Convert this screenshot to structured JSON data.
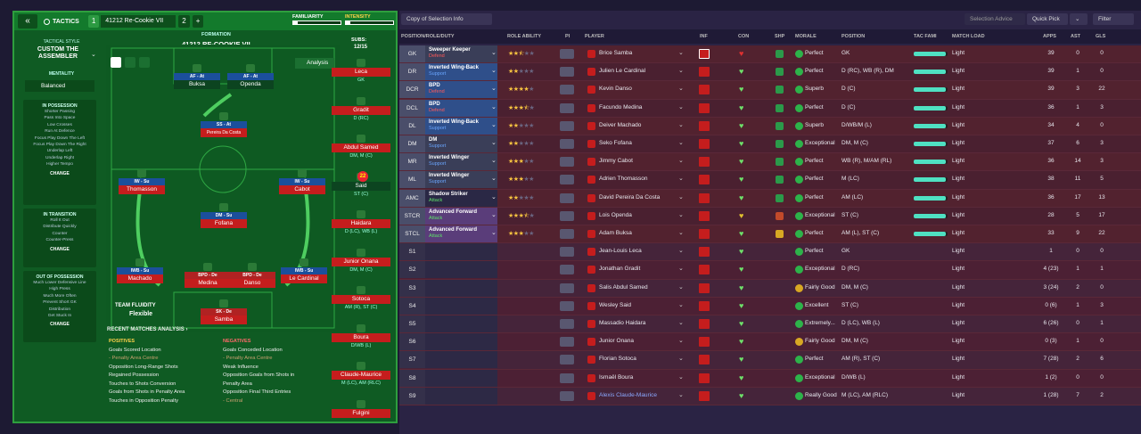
{
  "header": {
    "back": "«",
    "tactics": "TACTICS",
    "slot1": "1",
    "slot1_name": "41212 Re-Cookie VII",
    "slot2": "2",
    "add": "+",
    "familiarity": "FAMILIARITY",
    "intensity": "INTENSITY"
  },
  "side": {
    "style_label": "TACTICAL STYLE",
    "style_name": "CUSTOM THE ASSEMBLER",
    "mentality_label": "MENTALITY",
    "mentality": "Balanced",
    "in_possession": "IN POSSESSION",
    "in_possession_items": [
      "Shorter Passing",
      "Pass Into Space",
      "Low Crosses",
      "Run At Defence",
      "Focus Play Down The Left",
      "Focus Play Down The Right",
      "Underlap Left",
      "Underlap Right",
      "Higher Tempo"
    ],
    "in_transition": "IN TRANSITION",
    "in_transition_items": [
      "Roll It Out",
      "Distribute Quickly",
      "Counter",
      "Counter-Press"
    ],
    "out_of_possession": "OUT OF POSSESSION",
    "out_items": [
      "Much Lower Defensive Line",
      "High Press",
      "Much More Often",
      "Prevent Short GK",
      "Distribution",
      "Get Stuck In"
    ],
    "change": "CHANGE"
  },
  "formation": {
    "label": "FORMATION",
    "name": "41212 RE-COOKIE VII",
    "subs_label": "SUBS:",
    "subs": "12/15",
    "analysis": "Analysis",
    "team_fluidity": "TEAM FLUIDITY",
    "fluidity": "Flexible"
  },
  "pitch_players": [
    {
      "role": "AF - At",
      "name": "Buksa"
    },
    {
      "role": "AF - At",
      "name": "Openda"
    },
    {
      "role": "SS - At",
      "name": "Pereira Da Costa"
    },
    {
      "role": "IW - Su",
      "name": "Thomasson"
    },
    {
      "role": "IW - Su",
      "name": "Cabot"
    },
    {
      "role": "DM - Su",
      "name": "Fofana"
    },
    {
      "role": "IWB - Su",
      "name": "Machado"
    },
    {
      "role": "BPD - De",
      "name": "Medina"
    },
    {
      "role": "BPD - De",
      "name": "Danso"
    },
    {
      "role": "IWB - Su",
      "name": "Le Cardinal"
    },
    {
      "role": "SK - De",
      "name": "Samba"
    }
  ],
  "subs_list": [
    {
      "name": "Leca",
      "pos": "GK"
    },
    {
      "name": "Gradit",
      "pos": "D (RC)"
    },
    {
      "name": "Abdul Samed",
      "pos": "DM, M (C)"
    },
    {
      "name": "Said",
      "pos": "ST (C)",
      "num": "22"
    },
    {
      "name": "Haidara",
      "pos": "D (LC), WB (L)"
    },
    {
      "name": "Junior Onana",
      "pos": "DM, M (C)"
    },
    {
      "name": "Sotoca",
      "pos": "AM (R), ST (C)"
    },
    {
      "name": "Boura",
      "pos": "D/WB (L)"
    },
    {
      "name": "Claude-Maurice",
      "pos": "M (LC), AM (RLC)"
    },
    {
      "name": "Fulgini",
      "pos": ""
    }
  ],
  "analysis": {
    "title": "RECENT MATCHES ANALYSIS ›",
    "positives_label": "POSITIVES",
    "positives": [
      "Goals Scored Location",
      "- Penalty Area Centre",
      "Opposition Long-Range Shots",
      "Regained Possession",
      "Touches to Shots Conversion",
      "Goals from Shots in Penalty Area",
      "Touches in Opposition Penalty"
    ],
    "negatives_label": "NEGATIVES",
    "negatives": [
      "Goals Conceded Location",
      "- Penalty Area Centre",
      "Weak Influence",
      "Opposition Goals from Shots in",
      "Penalty Area",
      "Opposition Final Third Entries",
      "- Central"
    ]
  },
  "right_top": {
    "copy": "Copy of Selection Info",
    "selection_advice": "Selection Advice",
    "quick_pick": "Quick Pick",
    "filter": "Filter"
  },
  "columns": [
    "POSITION/ROLE/DUTY",
    "ROLE ABILITY",
    "PI",
    "PLAYER",
    "INF",
    "CON",
    "SHP",
    "MORALE",
    "POSITION",
    "TAC FAMI",
    "MATCH LOAD",
    "APPS",
    "AST",
    "GLS"
  ],
  "rows": [
    {
      "pos": "GK",
      "role": "Sweeper Keeper",
      "duty": "Defend",
      "stars": 2.5,
      "player": "Brice Samba",
      "morale": "Perfect",
      "position": "GK",
      "fami": 0.95,
      "load": "Light",
      "apps": "39",
      "ast": "0",
      "gls": "0",
      "shp": "#2b9a4a",
      "mc": "#2db34a"
    },
    {
      "pos": "DR",
      "role": "Inverted Wing-Back",
      "duty": "Support",
      "stars": 2,
      "player": "Julien Le Cardinal",
      "morale": "Perfect",
      "position": "D (RC), WB (R), DM",
      "fami": 0.95,
      "load": "Light",
      "apps": "39",
      "ast": "1",
      "gls": "0",
      "shp": "#2b9a4a",
      "mc": "#2db34a"
    },
    {
      "pos": "DCR",
      "role": "BPD",
      "duty": "Defend",
      "stars": 4,
      "player": "Kevin Danso",
      "morale": "Superb",
      "position": "D (C)",
      "fami": 0.95,
      "load": "Light",
      "apps": "39",
      "ast": "3",
      "gls": "22",
      "shp": "#2b9a4a",
      "mc": "#2db34a"
    },
    {
      "pos": "DCL",
      "role": "BPD",
      "duty": "Defend",
      "stars": 3.5,
      "player": "Facundo Medina",
      "morale": "Perfect",
      "position": "D (C)",
      "fami": 0.95,
      "load": "Light",
      "apps": "36",
      "ast": "1",
      "gls": "3",
      "shp": "#2b9a4a",
      "mc": "#2db34a"
    },
    {
      "pos": "DL",
      "role": "Inverted Wing-Back",
      "duty": "Support",
      "stars": 2,
      "player": "Deiver Machado",
      "morale": "Superb",
      "position": "D/WB/M (L)",
      "fami": 0.95,
      "load": "Light",
      "apps": "34",
      "ast": "4",
      "gls": "0",
      "shp": "#2b9a4a",
      "mc": "#2db34a"
    },
    {
      "pos": "DM",
      "role": "DM",
      "duty": "Support",
      "stars": 2,
      "player": "Seko Fofana",
      "morale": "Exceptional",
      "position": "DM, M (C)",
      "fami": 0.95,
      "load": "Light",
      "apps": "37",
      "ast": "6",
      "gls": "3",
      "shp": "#2b9a4a",
      "mc": "#2db34a"
    },
    {
      "pos": "MR",
      "role": "Inverted Winger",
      "duty": "Support",
      "stars": 3,
      "player": "Jimmy Cabot",
      "morale": "Perfect",
      "position": "WB (R), M/AM (RL)",
      "fami": 0.95,
      "load": "Light",
      "apps": "36",
      "ast": "14",
      "gls": "3",
      "shp": "#2b9a4a",
      "mc": "#2db34a"
    },
    {
      "pos": "ML",
      "role": "Inverted Winger",
      "duty": "Support",
      "stars": 3,
      "player": "Adrien Thomasson",
      "morale": "Perfect",
      "position": "M (LC)",
      "fami": 0.95,
      "load": "Light",
      "apps": "38",
      "ast": "11",
      "gls": "5",
      "shp": "#2b9a4a",
      "mc": "#2db34a"
    },
    {
      "pos": "AMC",
      "role": "Shadow Striker",
      "duty": "Attack",
      "stars": 2,
      "player": "David Pereira Da Costa",
      "morale": "Perfect",
      "position": "AM (LC)",
      "fami": 0.95,
      "load": "Light",
      "apps": "36",
      "ast": "17",
      "gls": "13",
      "shp": "#2b9a4a",
      "mc": "#2db34a"
    },
    {
      "pos": "STCR",
      "role": "Advanced Forward",
      "duty": "Attack",
      "stars": 3.5,
      "player": "Lois Openda",
      "morale": "Exceptional",
      "position": "ST (C)",
      "fami": 0.95,
      "load": "Light",
      "apps": "28",
      "ast": "5",
      "gls": "17",
      "shp": "#c24a2a",
      "mc": "#2db34a"
    },
    {
      "pos": "STCL",
      "role": "Advanced Forward",
      "duty": "Attack",
      "stars": 3,
      "player": "Adam Buksa",
      "morale": "Perfect",
      "position": "AM (L), ST (C)",
      "fami": 0.95,
      "load": "Light",
      "apps": "33",
      "ast": "9",
      "gls": "22",
      "shp": "#d8a823",
      "mc": "#2db34a"
    },
    {
      "pos": "S1",
      "role": "",
      "duty": "",
      "stars": 0,
      "player": "Jean-Louis Leca",
      "morale": "Perfect",
      "position": "GK",
      "fami": 0,
      "load": "Light",
      "apps": "1",
      "ast": "0",
      "gls": "0",
      "shp": "",
      "mc": "#2db34a"
    },
    {
      "pos": "S2",
      "role": "",
      "duty": "",
      "stars": 0,
      "player": "Jonathan Gradit",
      "morale": "Exceptional",
      "position": "D (RC)",
      "fami": 0,
      "load": "Light",
      "apps": "4 (23)",
      "ast": "1",
      "gls": "1",
      "shp": "",
      "mc": "#2db34a"
    },
    {
      "pos": "S3",
      "role": "",
      "duty": "",
      "stars": 0,
      "player": "Salis Abdul Samed",
      "morale": "Fairly Good",
      "position": "DM, M (C)",
      "fami": 0,
      "load": "Light",
      "apps": "3 (24)",
      "ast": "2",
      "gls": "0",
      "shp": "",
      "mc": "#d8a823"
    },
    {
      "pos": "S4",
      "role": "",
      "duty": "",
      "stars": 0,
      "player": "Wesley Said",
      "morale": "Excellent",
      "position": "ST (C)",
      "fami": 0,
      "load": "Light",
      "apps": "0 (6)",
      "ast": "1",
      "gls": "3",
      "shp": "",
      "mc": "#2db34a"
    },
    {
      "pos": "S5",
      "role": "",
      "duty": "",
      "stars": 0,
      "player": "Massadio Haidara",
      "morale": "Extremely...",
      "position": "D (LC), WB (L)",
      "fami": 0,
      "load": "Light",
      "apps": "6 (26)",
      "ast": "0",
      "gls": "1",
      "shp": "",
      "mc": "#2db34a"
    },
    {
      "pos": "S6",
      "role": "",
      "duty": "",
      "stars": 0,
      "player": "Junior Onana",
      "morale": "Fairly Good",
      "position": "DM, M (C)",
      "fami": 0,
      "load": "Light",
      "apps": "0 (3)",
      "ast": "1",
      "gls": "0",
      "shp": "",
      "mc": "#d8a823"
    },
    {
      "pos": "S7",
      "role": "",
      "duty": "",
      "stars": 0,
      "player": "Florian Sotoca",
      "morale": "Perfect",
      "position": "AM (R), ST (C)",
      "fami": 0,
      "load": "Light",
      "apps": "7 (28)",
      "ast": "2",
      "gls": "6",
      "shp": "",
      "mc": "#2db34a"
    },
    {
      "pos": "S8",
      "role": "",
      "duty": "",
      "stars": 0,
      "player": "Ismaël Boura",
      "morale": "Exceptional",
      "position": "D/WB (L)",
      "fami": 0,
      "load": "Light",
      "apps": "1 (2)",
      "ast": "0",
      "gls": "0",
      "shp": "",
      "mc": "#2db34a"
    },
    {
      "pos": "S9",
      "role": "",
      "duty": "",
      "stars": 0,
      "player": "Alexis Claude-Maurice",
      "morale": "Really Good",
      "position": "M (LC), AM (RLC)",
      "fami": 0,
      "load": "Light",
      "apps": "1 (28)",
      "ast": "7",
      "gls": "2",
      "shp": "",
      "mc": "#2db34a"
    }
  ],
  "colors": {
    "accent_green": "#2e9e3e",
    "bg": "#1d1a33",
    "row_red": "#4a2030"
  }
}
